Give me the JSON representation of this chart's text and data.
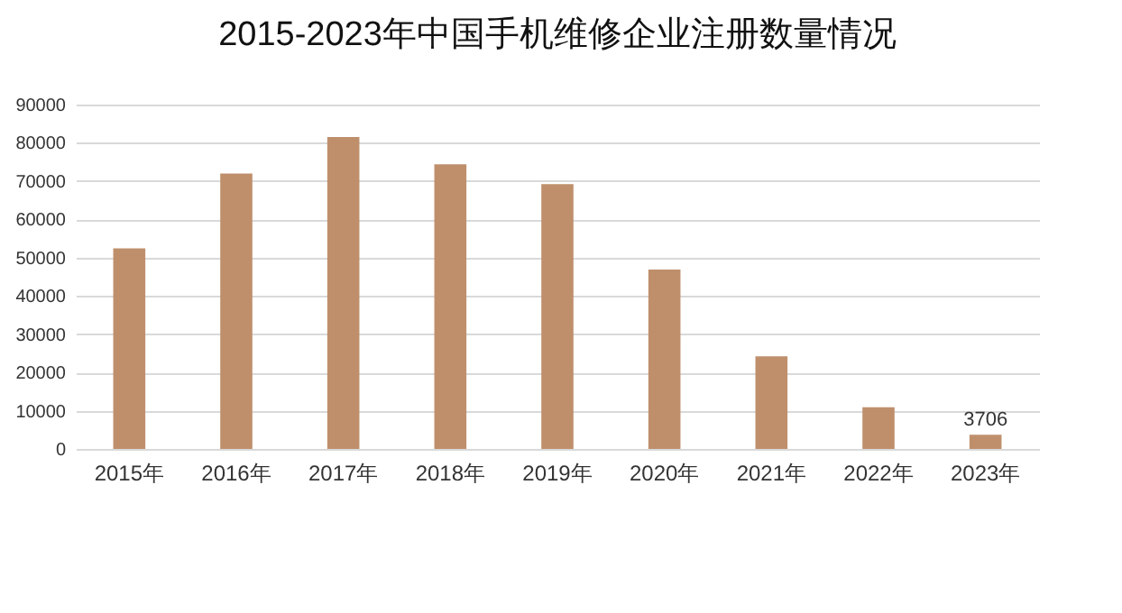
{
  "chart_data": {
    "type": "bar",
    "title": "2015-2023年中国手机维修企业注册数量情况",
    "categories": [
      "2015年",
      "2016年",
      "2017年",
      "2018年",
      "2019年",
      "2020年",
      "2021年",
      "2022年",
      "2023年"
    ],
    "values": [
      52400,
      72000,
      81500,
      74400,
      69200,
      46900,
      24200,
      10900,
      3706
    ],
    "value_labels": [
      null,
      null,
      null,
      null,
      null,
      null,
      null,
      null,
      "3706"
    ],
    "color": "#bf8f6c",
    "ylim": [
      0,
      90000
    ],
    "yticks": [
      0,
      10000,
      20000,
      30000,
      40000,
      50000,
      60000,
      70000,
      80000,
      90000
    ],
    "grid": "y"
  }
}
